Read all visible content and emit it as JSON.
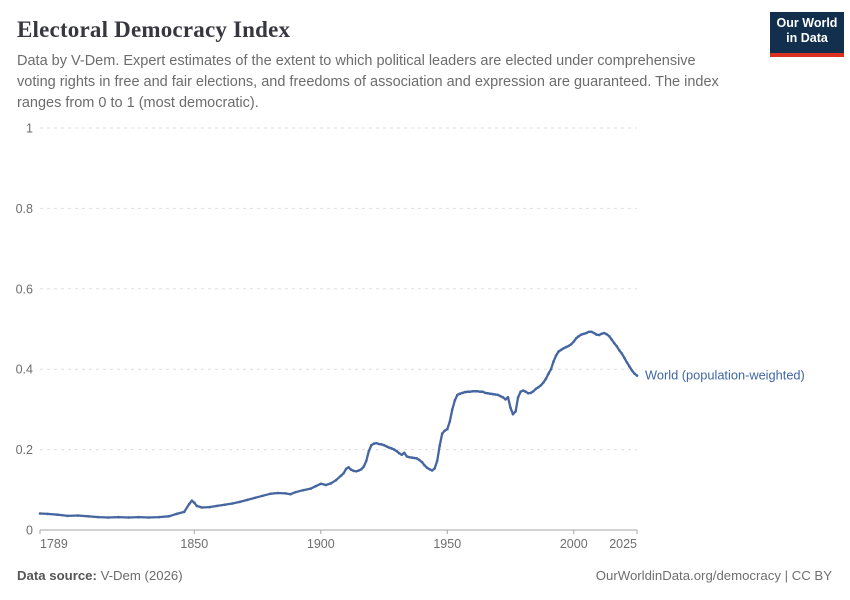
{
  "header": {
    "title": "Electoral Democracy Index",
    "subtitle_lines": [
      "Data by V-Dem. Expert estimates of the extent to which political leaders are elected under comprehensive",
      "voting rights in free and fair elections, and freedoms of association and expression are guaranteed. The index",
      "ranges from 0 to 1 (most democratic)."
    ],
    "logo": {
      "line1": "Our World",
      "line2": "in Data"
    }
  },
  "colors": {
    "line": "#4566a0",
    "end_label": "#4066a6",
    "logo_bg": "#12304e",
    "logo_accent": "#d9301f",
    "grid": "#dedede",
    "axis": "#a6a6a6",
    "tick_text": "#6e6e6e"
  },
  "chart_data": {
    "type": "line",
    "title": "Electoral Democracy Index",
    "xlabel": "",
    "ylabel": "",
    "xlim": [
      1789,
      2025
    ],
    "ylim": [
      0,
      1
    ],
    "x_ticks": [
      1789,
      1850,
      1900,
      1950,
      2000,
      2025
    ],
    "y_ticks": [
      0,
      0.2,
      0.4,
      0.6,
      0.8,
      1
    ],
    "grid": "horizontal dashed",
    "legend": "label at end of line",
    "series": [
      {
        "name": "World (population-weighted)",
        "color": "#4566a0",
        "points": [
          [
            1789,
            0.041
          ],
          [
            1792,
            0.04
          ],
          [
            1796,
            0.038
          ],
          [
            1800,
            0.035
          ],
          [
            1804,
            0.036
          ],
          [
            1808,
            0.034
          ],
          [
            1812,
            0.032
          ],
          [
            1816,
            0.031
          ],
          [
            1820,
            0.032
          ],
          [
            1824,
            0.031
          ],
          [
            1828,
            0.032
          ],
          [
            1832,
            0.031
          ],
          [
            1836,
            0.032
          ],
          [
            1840,
            0.034
          ],
          [
            1843,
            0.04
          ],
          [
            1846,
            0.045
          ],
          [
            1848,
            0.065
          ],
          [
            1849,
            0.073
          ],
          [
            1850,
            0.068
          ],
          [
            1851,
            0.06
          ],
          [
            1853,
            0.056
          ],
          [
            1856,
            0.057
          ],
          [
            1859,
            0.06
          ],
          [
            1862,
            0.063
          ],
          [
            1865,
            0.066
          ],
          [
            1868,
            0.07
          ],
          [
            1871,
            0.075
          ],
          [
            1874,
            0.08
          ],
          [
            1877,
            0.085
          ],
          [
            1880,
            0.09
          ],
          [
            1883,
            0.092
          ],
          [
            1886,
            0.091
          ],
          [
            1888,
            0.089
          ],
          [
            1890,
            0.094
          ],
          [
            1893,
            0.099
          ],
          [
            1896,
            0.103
          ],
          [
            1898,
            0.109
          ],
          [
            1900,
            0.115
          ],
          [
            1902,
            0.112
          ],
          [
            1904,
            0.116
          ],
          [
            1906,
            0.124
          ],
          [
            1908,
            0.135
          ],
          [
            1909,
            0.141
          ],
          [
            1910,
            0.152
          ],
          [
            1911,
            0.156
          ],
          [
            1912,
            0.15
          ],
          [
            1913,
            0.147
          ],
          [
            1914,
            0.146
          ],
          [
            1915,
            0.148
          ],
          [
            1916,
            0.151
          ],
          [
            1917,
            0.158
          ],
          [
            1918,
            0.172
          ],
          [
            1919,
            0.197
          ],
          [
            1920,
            0.211
          ],
          [
            1921,
            0.215
          ],
          [
            1922,
            0.216
          ],
          [
            1923,
            0.214
          ],
          [
            1924,
            0.213
          ],
          [
            1925,
            0.211
          ],
          [
            1926,
            0.208
          ],
          [
            1927,
            0.205
          ],
          [
            1928,
            0.203
          ],
          [
            1929,
            0.2
          ],
          [
            1930,
            0.196
          ],
          [
            1931,
            0.191
          ],
          [
            1932,
            0.187
          ],
          [
            1933,
            0.192
          ],
          [
            1934,
            0.183
          ],
          [
            1935,
            0.181
          ],
          [
            1936,
            0.18
          ],
          [
            1937,
            0.179
          ],
          [
            1938,
            0.178
          ],
          [
            1939,
            0.174
          ],
          [
            1940,
            0.169
          ],
          [
            1941,
            0.161
          ],
          [
            1942,
            0.155
          ],
          [
            1943,
            0.151
          ],
          [
            1944,
            0.148
          ],
          [
            1945,
            0.153
          ],
          [
            1946,
            0.172
          ],
          [
            1947,
            0.21
          ],
          [
            1948,
            0.24
          ],
          [
            1949,
            0.247
          ],
          [
            1950,
            0.251
          ],
          [
            1951,
            0.27
          ],
          [
            1952,
            0.3
          ],
          [
            1953,
            0.323
          ],
          [
            1954,
            0.336
          ],
          [
            1955,
            0.339
          ],
          [
            1956,
            0.341
          ],
          [
            1957,
            0.343
          ],
          [
            1958,
            0.344
          ],
          [
            1959,
            0.344
          ],
          [
            1960,
            0.345
          ],
          [
            1961,
            0.345
          ],
          [
            1962,
            0.345
          ],
          [
            1963,
            0.344
          ],
          [
            1964,
            0.344
          ],
          [
            1965,
            0.341
          ],
          [
            1966,
            0.34
          ],
          [
            1967,
            0.339
          ],
          [
            1968,
            0.338
          ],
          [
            1969,
            0.337
          ],
          [
            1970,
            0.336
          ],
          [
            1971,
            0.333
          ],
          [
            1972,
            0.33
          ],
          [
            1973,
            0.325
          ],
          [
            1974,
            0.33
          ],
          [
            1975,
            0.304
          ],
          [
            1976,
            0.288
          ],
          [
            1977,
            0.295
          ],
          [
            1978,
            0.33
          ],
          [
            1979,
            0.344
          ],
          [
            1980,
            0.347
          ],
          [
            1981,
            0.344
          ],
          [
            1982,
            0.34
          ],
          [
            1983,
            0.341
          ],
          [
            1984,
            0.345
          ],
          [
            1985,
            0.351
          ],
          [
            1986,
            0.355
          ],
          [
            1987,
            0.36
          ],
          [
            1988,
            0.367
          ],
          [
            1989,
            0.376
          ],
          [
            1990,
            0.389
          ],
          [
            1991,
            0.4
          ],
          [
            1992,
            0.419
          ],
          [
            1993,
            0.434
          ],
          [
            1994,
            0.444
          ],
          [
            1995,
            0.448
          ],
          [
            1996,
            0.452
          ],
          [
            1997,
            0.455
          ],
          [
            1998,
            0.458
          ],
          [
            1999,
            0.462
          ],
          [
            2000,
            0.469
          ],
          [
            2001,
            0.477
          ],
          [
            2002,
            0.482
          ],
          [
            2003,
            0.486
          ],
          [
            2004,
            0.488
          ],
          [
            2005,
            0.49
          ],
          [
            2006,
            0.493
          ],
          [
            2007,
            0.493
          ],
          [
            2008,
            0.49
          ],
          [
            2009,
            0.486
          ],
          [
            2010,
            0.485
          ],
          [
            2011,
            0.488
          ],
          [
            2012,
            0.49
          ],
          [
            2013,
            0.487
          ],
          [
            2014,
            0.482
          ],
          [
            2015,
            0.474
          ],
          [
            2016,
            0.465
          ],
          [
            2017,
            0.457
          ],
          [
            2018,
            0.447
          ],
          [
            2019,
            0.439
          ],
          [
            2020,
            0.428
          ],
          [
            2021,
            0.417
          ],
          [
            2022,
            0.407
          ],
          [
            2023,
            0.397
          ],
          [
            2024,
            0.389
          ],
          [
            2025,
            0.384
          ]
        ]
      }
    ]
  },
  "footer": {
    "source_label": "Data source:",
    "source_value": "V-Dem (2026)",
    "credit": "OurWorldinData.org/democracy | CC BY"
  }
}
